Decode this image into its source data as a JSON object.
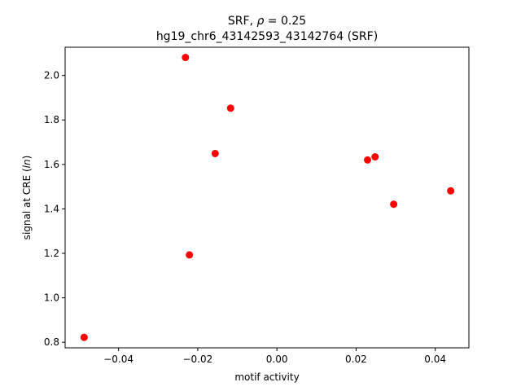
{
  "chart_data": {
    "type": "scatter",
    "title_line1_prefix": "SRF, ",
    "title_line1_symbol": "ρ",
    "title_line1_suffix": " = 0.25",
    "title_line2": "hg19_chr6_43142593_43142764 (SRF)",
    "xlabel": "motif activity",
    "ylabel_prefix": "signal at CRE (",
    "ylabel_symbol": "ln",
    "ylabel_suffix": ")",
    "xlim": [
      -0.0535,
      0.0485
    ],
    "ylim": [
      0.775,
      2.127
    ],
    "xticks": [
      -0.04,
      -0.02,
      0.0,
      0.02,
      0.04
    ],
    "xtick_labels": [
      "−0.04",
      "−0.02",
      "0.00",
      "0.02",
      "0.04"
    ],
    "yticks": [
      0.8,
      1.0,
      1.2,
      1.4,
      1.6,
      1.8,
      2.0
    ],
    "ytick_labels": [
      "0.8",
      "1.0",
      "1.2",
      "1.4",
      "1.6",
      "1.8",
      "2.0"
    ],
    "grid": false,
    "marker_color": "#ff0000",
    "points": [
      {
        "x": -0.0487,
        "y": 0.822
      },
      {
        "x": -0.0231,
        "y": 2.081
      },
      {
        "x": -0.0221,
        "y": 1.193
      },
      {
        "x": -0.0156,
        "y": 1.649
      },
      {
        "x": -0.0117,
        "y": 1.853
      },
      {
        "x": 0.0229,
        "y": 1.62
      },
      {
        "x": 0.0248,
        "y": 1.634
      },
      {
        "x": 0.0295,
        "y": 1.421
      },
      {
        "x": 0.0439,
        "y": 1.481
      }
    ]
  }
}
